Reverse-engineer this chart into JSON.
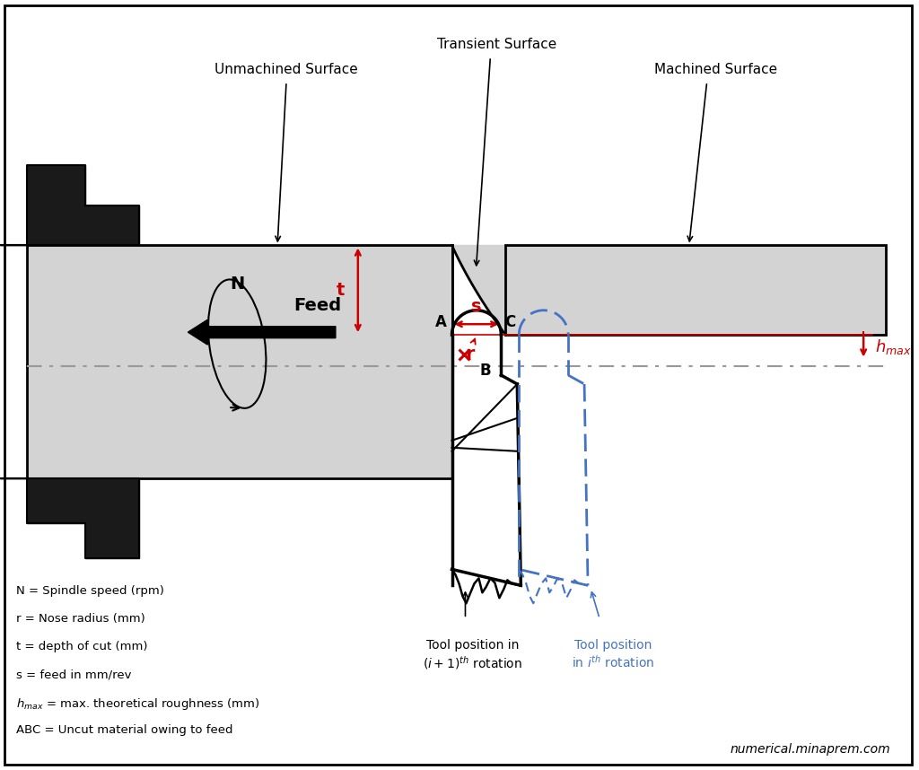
{
  "bg_color": "#ffffff",
  "border_color": "#000000",
  "gray_fill": "#d3d3d3",
  "black_fill": "#1a1a1a",
  "red_color": "#cc0000",
  "blue_color": "#4472c4",
  "text_color": "#000000",
  "unmachined_label": "Unmachined Surface",
  "transient_label": "Transient Surface",
  "machined_label": "Machined Surface",
  "feed_label": "Feed",
  "tool_i1_label": "Tool position in\n$(i+1)^{th}$ rotation",
  "tool_i_label": "Tool position\nin $i^{th}$ rotation",
  "website": "numerical.minaprem.com",
  "legend_lines": [
    "N = Spindle speed (rpm)",
    "r = Nose radius (mm)",
    "t = depth of cut (mm)",
    "s = feed in mm/rev",
    "$h_{max}$ = max. theoretical roughness (mm)",
    "ABC = Uncut material owing to feed"
  ]
}
